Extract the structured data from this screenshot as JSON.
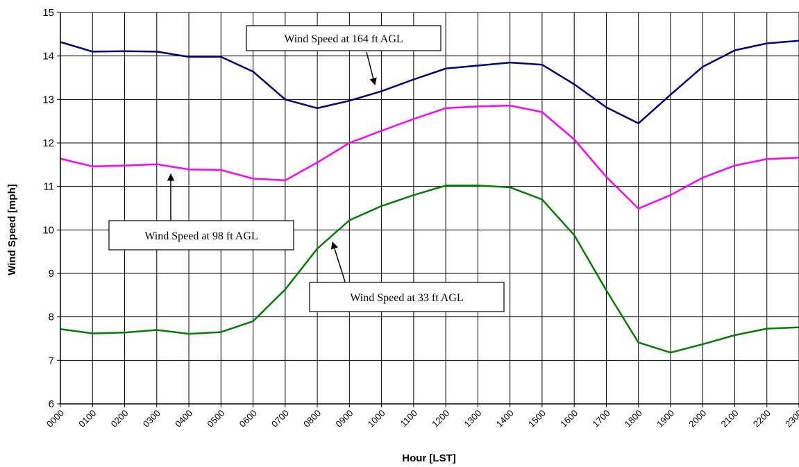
{
  "chart_data": {
    "type": "line",
    "xlabel": "Hour [LST]",
    "ylabel": "Wind Speed [mph]",
    "ylim": [
      6,
      15
    ],
    "yticks": [
      6,
      7,
      8,
      9,
      10,
      11,
      12,
      13,
      14,
      15
    ],
    "grid": true,
    "categories": [
      "0000",
      "0100",
      "0200",
      "0300",
      "0400",
      "0500",
      "0600",
      "0700",
      "0800",
      "0900",
      "1000",
      "1100",
      "1200",
      "1300",
      "1400",
      "1500",
      "1600",
      "1700",
      "1800",
      "1900",
      "2000",
      "2100",
      "2200",
      "2300"
    ],
    "series": [
      {
        "name": "Wind Speed at 164 ft AGL",
        "color": "#000080",
        "values": [
          14.32,
          14.1,
          14.11,
          14.1,
          13.98,
          13.98,
          13.64,
          13.0,
          12.8,
          12.97,
          13.19,
          13.46,
          13.71,
          13.78,
          13.85,
          13.8,
          13.35,
          12.82,
          12.45,
          13.11,
          13.75,
          14.13,
          14.29,
          14.35
        ]
      },
      {
        "name": "Wind Speed at 98 ft AGL",
        "color": "#ff00ff",
        "values": [
          11.64,
          11.46,
          11.48,
          11.51,
          11.39,
          11.38,
          11.18,
          11.14,
          11.55,
          12.0,
          12.28,
          12.55,
          12.8,
          12.84,
          12.86,
          12.71,
          12.08,
          11.22,
          10.49,
          10.8,
          11.2,
          11.48,
          11.63,
          11.66
        ]
      },
      {
        "name": "Wind Speed at 33 ft AGL",
        "color": "#008000",
        "values": [
          7.72,
          7.62,
          7.64,
          7.7,
          7.61,
          7.65,
          7.9,
          8.63,
          9.57,
          10.22,
          10.55,
          10.8,
          11.02,
          11.02,
          10.98,
          10.7,
          9.88,
          8.61,
          7.41,
          7.18,
          7.37,
          7.58,
          7.73,
          7.76
        ]
      }
    ],
    "annotations": [
      {
        "text": "Wind Speed at 164 ft AGL",
        "series_index": 0
      },
      {
        "text": "Wind Speed at 98 ft AGL",
        "series_index": 1
      },
      {
        "text": "Wind Speed at 33 ft AGL",
        "series_index": 2
      }
    ]
  }
}
